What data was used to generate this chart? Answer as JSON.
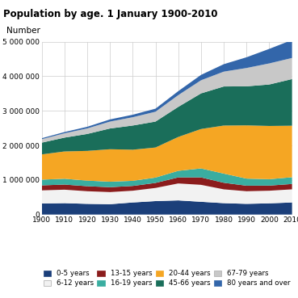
{
  "title": "Population by age. 1 January 1900-2010",
  "ylabel": "Number",
  "years": [
    1900,
    1910,
    1920,
    1930,
    1940,
    1950,
    1960,
    1970,
    1980,
    1990,
    2000,
    2010
  ],
  "series_order": [
    "0-5 years",
    "6-12 years",
    "13-15 years",
    "16-19 years",
    "20-44 years",
    "45-66 years",
    "67-79 years",
    "80 years and over"
  ],
  "series": {
    "0-5 years": [
      320000,
      330000,
      310000,
      300000,
      350000,
      390000,
      410000,
      370000,
      330000,
      310000,
      325000,
      350000
    ],
    "6-12 years": [
      380000,
      390000,
      365000,
      350000,
      340000,
      380000,
      490000,
      490000,
      400000,
      365000,
      365000,
      380000
    ],
    "13-15 years": [
      145000,
      148000,
      145000,
      142000,
      138000,
      145000,
      175000,
      215000,
      190000,
      160000,
      148000,
      155000
    ],
    "16-19 years": [
      165000,
      168000,
      162000,
      158000,
      148000,
      155000,
      190000,
      260000,
      265000,
      205000,
      185000,
      195000
    ],
    "20-44 years": [
      730000,
      790000,
      860000,
      940000,
      900000,
      870000,
      980000,
      1140000,
      1390000,
      1540000,
      1540000,
      1490000
    ],
    "45-66 years": [
      340000,
      400000,
      490000,
      600000,
      700000,
      750000,
      870000,
      1030000,
      1130000,
      1130000,
      1200000,
      1350000
    ],
    "67-79 years": [
      100000,
      125000,
      160000,
      200000,
      240000,
      285000,
      340000,
      380000,
      430000,
      530000,
      610000,
      610000
    ],
    "80 years and over": [
      28000,
      36000,
      47000,
      62000,
      72000,
      88000,
      115000,
      155000,
      215000,
      310000,
      420000,
      520000
    ]
  },
  "colors": {
    "0-5 years": "#1b3f7a",
    "6-12 years": "#f2f2f2",
    "13-15 years": "#8b1c1c",
    "16-19 years": "#3aada0",
    "20-44 years": "#f5a623",
    "45-66 years": "#1a6e5a",
    "67-79 years": "#c8c8c8",
    "80 years and over": "#3366aa"
  },
  "edge_colors": {
    "0-5 years": "#1b3f7a",
    "6-12 years": "#aaaaaa",
    "13-15 years": "#8b1c1c",
    "16-19 years": "#3aada0",
    "20-44 years": "#f5a623",
    "45-66 years": "#1a6e5a",
    "67-79 years": "#aaaaaa",
    "80 years and over": "#3366aa"
  },
  "ylim": [
    0,
    5000000
  ],
  "yticks": [
    0,
    1000000,
    2000000,
    3000000,
    4000000,
    5000000
  ],
  "ytick_labels": [
    "0",
    "1 000 000",
    "2 000 000",
    "3 000 000",
    "4 000 000",
    "5 000 000"
  ],
  "xticks": [
    1900,
    1910,
    1920,
    1930,
    1940,
    1950,
    1960,
    1970,
    1980,
    1990,
    2000,
    2010
  ],
  "background_color": "#ffffff",
  "grid_color": "#cccccc",
  "legend_order": [
    "0-5 years",
    "6-12 years",
    "13-15 years",
    "16-19 years",
    "20-44 years",
    "45-66 years",
    "67-79 years",
    "80 years and over"
  ]
}
